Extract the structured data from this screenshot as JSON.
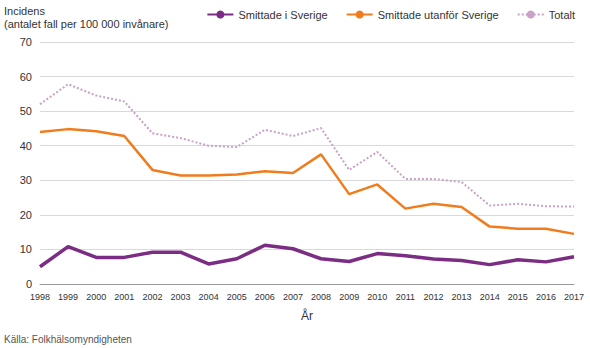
{
  "chart_data": {
    "type": "line",
    "ylabel": [
      "Incidens",
      "(antalet fall per 100 000 invånare)"
    ],
    "xlabel": "År",
    "annotations": [
      "Källa: Folkhälsomyndigheten"
    ],
    "categories": [
      "1998",
      "1999",
      "2000",
      "2001",
      "2002",
      "2003",
      "2004",
      "2005",
      "2006",
      "2007",
      "2008",
      "2009",
      "2010",
      "2011",
      "2012",
      "2013",
      "2014",
      "2015",
      "2016",
      "2017"
    ],
    "series": [
      {
        "name": "Smittade i Sverige",
        "color": "#7b2c83",
        "line_style": "solid",
        "values": [
          5.0,
          10.8,
          7.7,
          7.7,
          9.2,
          9.2,
          5.8,
          7.3,
          11.2,
          10.2,
          7.3,
          6.5,
          8.8,
          8.2,
          7.2,
          6.8,
          5.6,
          7.0,
          6.4,
          7.9
        ]
      },
      {
        "name": "Smittade utanför Sverige",
        "color": "#f07c1e",
        "line_style": "solid",
        "values": [
          44.0,
          44.8,
          44.2,
          42.8,
          33.0,
          31.4,
          31.4,
          31.7,
          32.6,
          32.1,
          37.5,
          26.0,
          28.8,
          21.8,
          23.2,
          22.3,
          16.6,
          16.0,
          16.0,
          14.5
        ]
      },
      {
        "name": "Totalt",
        "color": "#c8a2c8",
        "line_style": "dotted",
        "values": [
          52.0,
          57.8,
          54.5,
          52.8,
          43.6,
          42.2,
          40.0,
          39.6,
          44.6,
          42.8,
          45.1,
          33.0,
          38.2,
          30.4,
          30.4,
          29.5,
          22.7,
          23.2,
          22.5,
          22.4
        ]
      }
    ],
    "ylim": [
      0,
      70
    ],
    "yticks": [
      0,
      10,
      20,
      30,
      40,
      50,
      60,
      70
    ],
    "grid": true,
    "legend": "top"
  }
}
